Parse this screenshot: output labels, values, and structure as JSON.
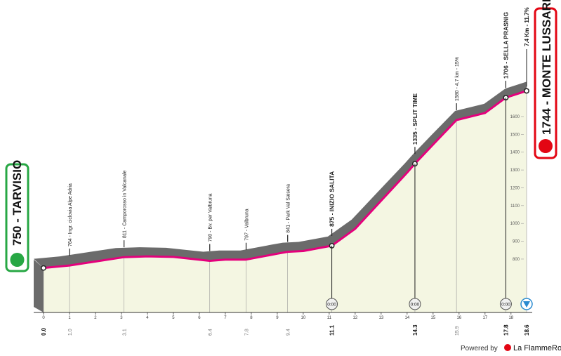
{
  "chart_data": {
    "type": "profile",
    "x": [
      0,
      1.0,
      3.1,
      4,
      5,
      6.4,
      7,
      7.8,
      9,
      9.4,
      10,
      11.1,
      12,
      13,
      14,
      14.3,
      15,
      15.9,
      17,
      17.8,
      18.6
    ],
    "values": [
      750,
      764,
      811,
      815,
      812,
      790,
      797,
      797,
      830,
      841,
      845,
      875,
      970,
      1128,
      1285,
      1335,
      1443,
      1580,
      1620,
      1706,
      1744
    ],
    "xlim": [
      0,
      18.6
    ],
    "ylim": [
      520,
      1860
    ],
    "xticks": [
      0,
      1,
      2,
      3,
      4,
      5,
      6,
      7,
      8,
      9,
      10,
      11,
      12,
      13,
      14,
      15,
      16,
      17,
      18
    ],
    "yticks": [
      800,
      900,
      1000,
      1100,
      1200,
      1300,
      1400,
      1500,
      1600
    ],
    "color": "#e4007c",
    "band_color": "#6b6b6b",
    "fill_color": "#f4f6e2",
    "km_marks": [
      {
        "value": 0,
        "label": "0.0"
      },
      {
        "value": 1,
        "label": "1.0"
      },
      3.1,
      6.4,
      7.8,
      9.4,
      11.1,
      14.3,
      15.9,
      17.8,
      18.6
    ],
    "annotations": [
      {
        "km": 1.0,
        "text": "764 - Ingr. ciclovia Alpe Adria",
        "bold": false
      },
      {
        "km": 3.1,
        "text": "811 - Camporosso in Valcanale",
        "bold": false
      },
      {
        "km": 6.4,
        "text": "790 - Bv. per Valbruna",
        "bold": false
      },
      {
        "km": 7.8,
        "text": "797 - Valbruna",
        "bold": false
      },
      {
        "km": 9.4,
        "text": "841 - Park Val Saisera",
        "bold": false
      },
      {
        "km": 11.1,
        "text": "875 - INIZIO SALITA",
        "bold": true
      },
      {
        "km": 14.3,
        "text": "1335 - SPLIT TIME",
        "bold": true
      },
      {
        "km": 15.9,
        "text": "1580 - 4.7 km - 15%",
        "bold": false
      },
      {
        "km": 17.8,
        "text": "1706 - SELLA PRASNIG",
        "bold": true
      }
    ],
    "climb_label": "7.4 Km - 11.7%",
    "checkpoints": [
      {
        "km": 11.1,
        "label": "0:00"
      },
      {
        "km": 14.3,
        "label": "0:00"
      },
      {
        "km": 17.8,
        "label": "0:00"
      }
    ],
    "start": {
      "label": "750 - TARVISIO",
      "color": "#27a744"
    },
    "finish": {
      "label": "1744 - MONTE LUSSARI",
      "color": "#e30613"
    }
  },
  "footer": {
    "powered": "Powered by",
    "brand": "La FlammeRouge"
  }
}
